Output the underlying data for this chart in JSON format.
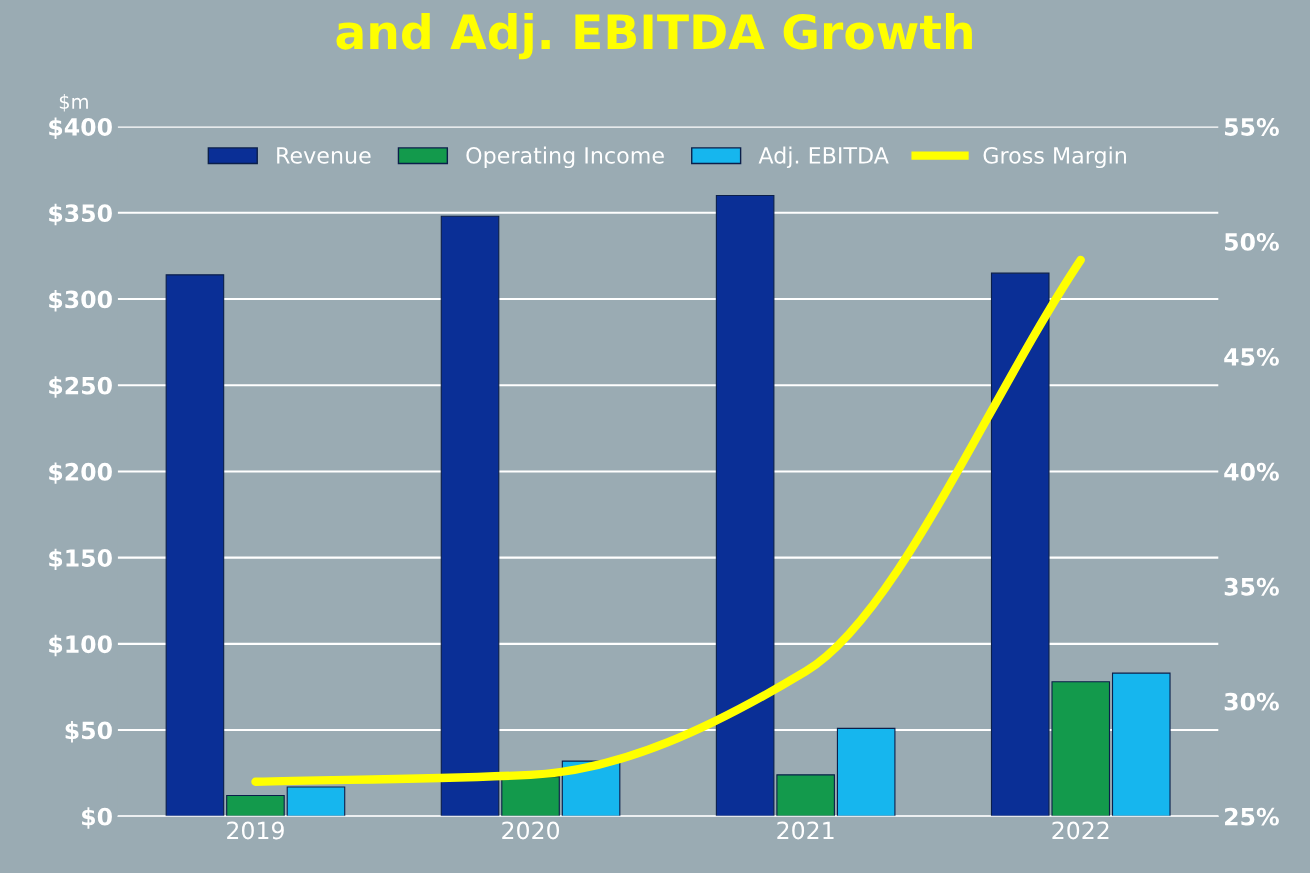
{
  "chart_data": {
    "type": "bar",
    "title": "and Adj. EBITDA Growth",
    "ylabel": "$m",
    "categories": [
      "2019",
      "2020",
      "2021",
      "2022"
    ],
    "series": [
      {
        "name": "Revenue",
        "color": "#0a2f96",
        "values": [
          314,
          348,
          360,
          315
        ]
      },
      {
        "name": "Operating Income",
        "color": "#139a4c",
        "values": [
          12,
          23,
          24,
          78
        ]
      },
      {
        "name": "Adj. EBITDA",
        "color": "#16b6ee",
        "values": [
          17,
          32,
          51,
          83
        ]
      },
      {
        "name": "Gross Margin",
        "type": "line",
        "axis": "y2",
        "color": "#ffff00",
        "values": [
          26.5,
          26.8,
          31.3,
          49.2
        ]
      }
    ],
    "ylim": [
      0,
      400
    ],
    "yticks": [
      {
        "value": 0,
        "label": "$0"
      },
      {
        "value": 50,
        "label": "$50"
      },
      {
        "value": 100,
        "label": "$100"
      },
      {
        "value": 150,
        "label": "$150"
      },
      {
        "value": 200,
        "label": "$200"
      },
      {
        "value": 250,
        "label": "$250"
      },
      {
        "value": 300,
        "label": "$300"
      },
      {
        "value": 350,
        "label": "$350"
      },
      {
        "value": 400,
        "label": "$400"
      }
    ],
    "y2lim": [
      25,
      55
    ],
    "y2ticks": [
      {
        "value": 25,
        "label": "25%"
      },
      {
        "value": 30,
        "label": "30%"
      },
      {
        "value": 35,
        "label": "35%"
      },
      {
        "value": 40,
        "label": "40%"
      },
      {
        "value": 45,
        "label": "45%"
      },
      {
        "value": 50,
        "label": "50%"
      },
      {
        "value": 55,
        "label": "55%"
      }
    ],
    "grid": "y",
    "legend": "top"
  }
}
